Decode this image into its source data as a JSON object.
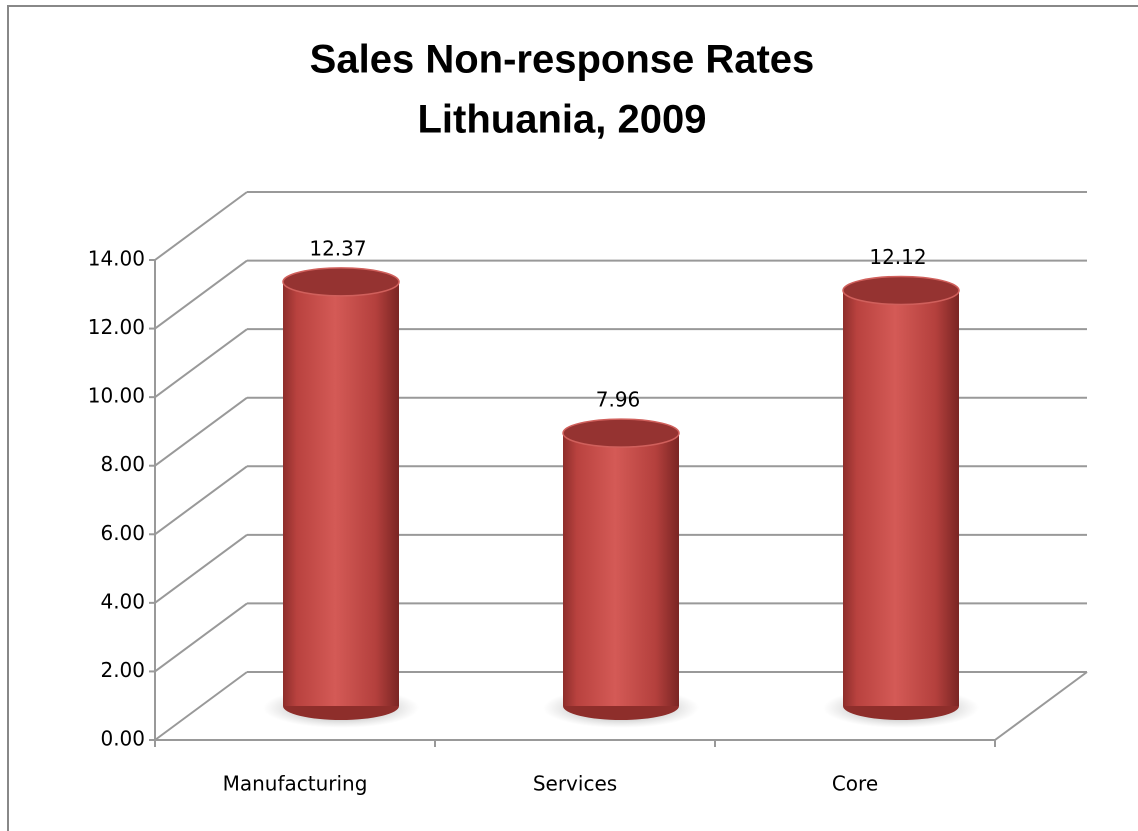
{
  "chart_data": {
    "type": "bar3d",
    "title": [
      "Sales Non-response Rates",
      "Lithuania, 2009"
    ],
    "categories": [
      "Manufacturing",
      "Services",
      "Core"
    ],
    "values": [
      12.37,
      7.96,
      12.12
    ],
    "color": "#c0504d",
    "ylim": [
      0,
      14
    ],
    "yticks": [
      {
        "value": 0,
        "label": "0.00"
      },
      {
        "value": 2,
        "label": "2.00"
      },
      {
        "value": 4,
        "label": "4.00"
      },
      {
        "value": 6,
        "label": "6.00"
      },
      {
        "value": 8,
        "label": "8.00"
      },
      {
        "value": 10,
        "label": "10.00"
      },
      {
        "value": 12,
        "label": "12.00"
      },
      {
        "value": 14,
        "label": "14.00"
      }
    ],
    "grid": true
  }
}
